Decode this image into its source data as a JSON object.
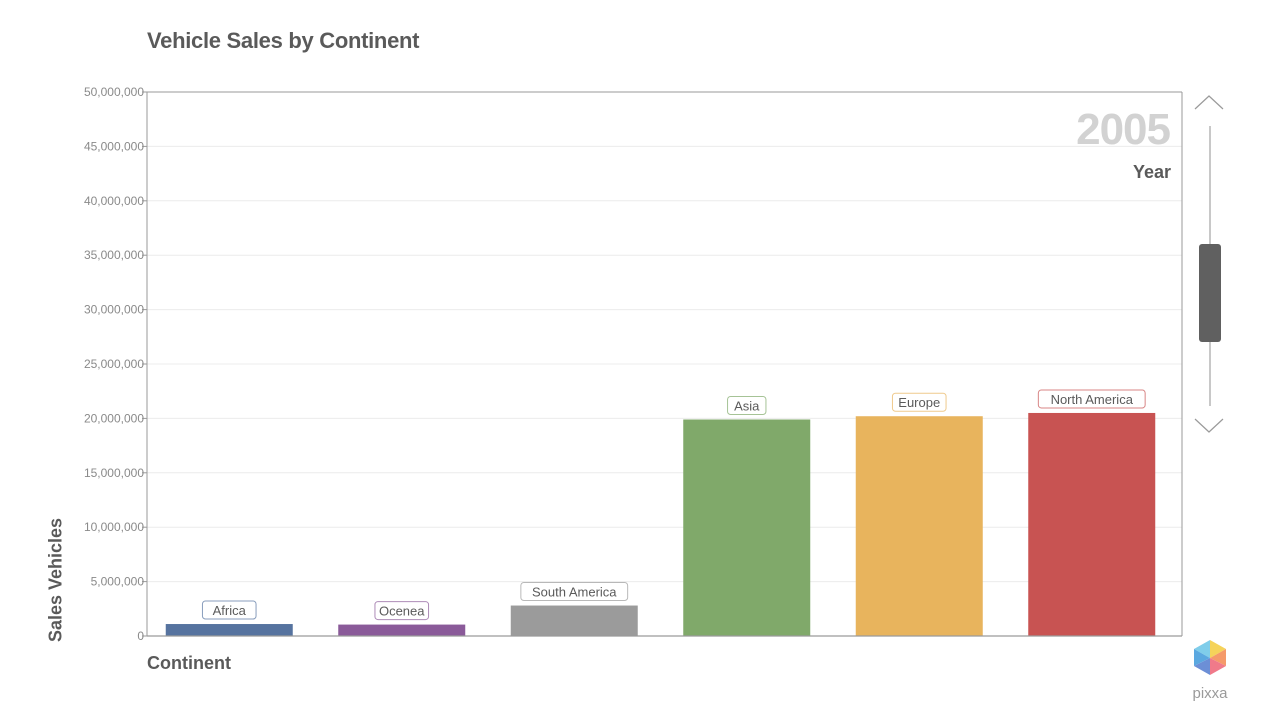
{
  "chart_data": {
    "type": "bar",
    "title": "Vehicle Sales by Continent",
    "xlabel": "Continent",
    "ylabel": "Sales Vehicles",
    "ylim": [
      0,
      50000000
    ],
    "yticks": [
      0,
      5000000,
      10000000,
      15000000,
      20000000,
      25000000,
      30000000,
      35000000,
      40000000,
      45000000,
      50000000
    ],
    "ytick_labels": [
      "0",
      "5,000,000",
      "10,000,000",
      "15,000,000",
      "20,000,000",
      "25,000,000",
      "30,000,000",
      "35,000,000",
      "40,000,000",
      "45,000,000",
      "50,000,000"
    ],
    "grid": true,
    "categories": [
      "Africa",
      "Ocenea",
      "South America",
      "Asia",
      "Europe",
      "North America"
    ],
    "values": [
      1100000,
      1050000,
      2800000,
      19900000,
      20200000,
      20500000
    ],
    "colors": [
      "#56739f",
      "#8a5a99",
      "#9b9b9b",
      "#80a96a",
      "#e8b45d",
      "#c85352"
    ]
  },
  "year_indicator": {
    "value": "2005",
    "label": "Year"
  },
  "year_slider": {
    "position_fraction": 0.65
  },
  "branding": {
    "name": "pixxa"
  }
}
